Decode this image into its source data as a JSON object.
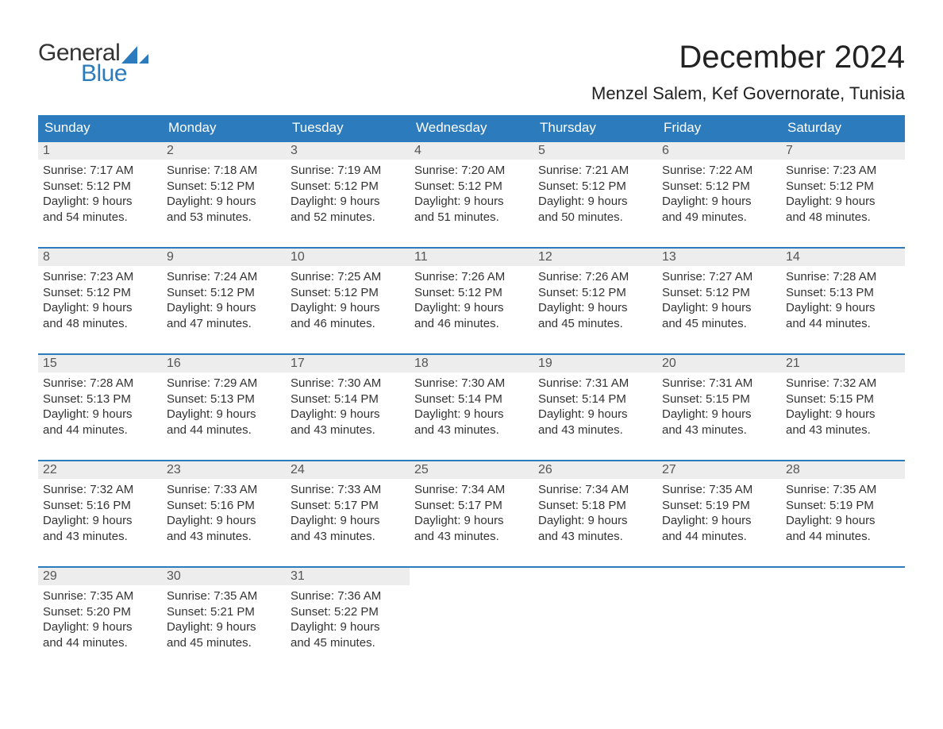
{
  "brand": {
    "text1": "General",
    "text2": "Blue",
    "sail_color": "#2b7bbd"
  },
  "title": "December 2024",
  "location": "Menzel Salem, Kef Governorate, Tunisia",
  "colors": {
    "header_bg": "#2b7bbd",
    "header_text": "#ffffff",
    "daynum_bg": "#ededed",
    "border": "#2b7bbd",
    "body_bg": "#ffffff",
    "text": "#333333"
  },
  "day_headers": [
    "Sunday",
    "Monday",
    "Tuesday",
    "Wednesday",
    "Thursday",
    "Friday",
    "Saturday"
  ],
  "weeks": [
    [
      {
        "n": "1",
        "sunrise": "Sunrise: 7:17 AM",
        "sunset": "Sunset: 5:12 PM",
        "dl1": "Daylight: 9 hours",
        "dl2": "and 54 minutes."
      },
      {
        "n": "2",
        "sunrise": "Sunrise: 7:18 AM",
        "sunset": "Sunset: 5:12 PM",
        "dl1": "Daylight: 9 hours",
        "dl2": "and 53 minutes."
      },
      {
        "n": "3",
        "sunrise": "Sunrise: 7:19 AM",
        "sunset": "Sunset: 5:12 PM",
        "dl1": "Daylight: 9 hours",
        "dl2": "and 52 minutes."
      },
      {
        "n": "4",
        "sunrise": "Sunrise: 7:20 AM",
        "sunset": "Sunset: 5:12 PM",
        "dl1": "Daylight: 9 hours",
        "dl2": "and 51 minutes."
      },
      {
        "n": "5",
        "sunrise": "Sunrise: 7:21 AM",
        "sunset": "Sunset: 5:12 PM",
        "dl1": "Daylight: 9 hours",
        "dl2": "and 50 minutes."
      },
      {
        "n": "6",
        "sunrise": "Sunrise: 7:22 AM",
        "sunset": "Sunset: 5:12 PM",
        "dl1": "Daylight: 9 hours",
        "dl2": "and 49 minutes."
      },
      {
        "n": "7",
        "sunrise": "Sunrise: 7:23 AM",
        "sunset": "Sunset: 5:12 PM",
        "dl1": "Daylight: 9 hours",
        "dl2": "and 48 minutes."
      }
    ],
    [
      {
        "n": "8",
        "sunrise": "Sunrise: 7:23 AM",
        "sunset": "Sunset: 5:12 PM",
        "dl1": "Daylight: 9 hours",
        "dl2": "and 48 minutes."
      },
      {
        "n": "9",
        "sunrise": "Sunrise: 7:24 AM",
        "sunset": "Sunset: 5:12 PM",
        "dl1": "Daylight: 9 hours",
        "dl2": "and 47 minutes."
      },
      {
        "n": "10",
        "sunrise": "Sunrise: 7:25 AM",
        "sunset": "Sunset: 5:12 PM",
        "dl1": "Daylight: 9 hours",
        "dl2": "and 46 minutes."
      },
      {
        "n": "11",
        "sunrise": "Sunrise: 7:26 AM",
        "sunset": "Sunset: 5:12 PM",
        "dl1": "Daylight: 9 hours",
        "dl2": "and 46 minutes."
      },
      {
        "n": "12",
        "sunrise": "Sunrise: 7:26 AM",
        "sunset": "Sunset: 5:12 PM",
        "dl1": "Daylight: 9 hours",
        "dl2": "and 45 minutes."
      },
      {
        "n": "13",
        "sunrise": "Sunrise: 7:27 AM",
        "sunset": "Sunset: 5:12 PM",
        "dl1": "Daylight: 9 hours",
        "dl2": "and 45 minutes."
      },
      {
        "n": "14",
        "sunrise": "Sunrise: 7:28 AM",
        "sunset": "Sunset: 5:13 PM",
        "dl1": "Daylight: 9 hours",
        "dl2": "and 44 minutes."
      }
    ],
    [
      {
        "n": "15",
        "sunrise": "Sunrise: 7:28 AM",
        "sunset": "Sunset: 5:13 PM",
        "dl1": "Daylight: 9 hours",
        "dl2": "and 44 minutes."
      },
      {
        "n": "16",
        "sunrise": "Sunrise: 7:29 AM",
        "sunset": "Sunset: 5:13 PM",
        "dl1": "Daylight: 9 hours",
        "dl2": "and 44 minutes."
      },
      {
        "n": "17",
        "sunrise": "Sunrise: 7:30 AM",
        "sunset": "Sunset: 5:14 PM",
        "dl1": "Daylight: 9 hours",
        "dl2": "and 43 minutes."
      },
      {
        "n": "18",
        "sunrise": "Sunrise: 7:30 AM",
        "sunset": "Sunset: 5:14 PM",
        "dl1": "Daylight: 9 hours",
        "dl2": "and 43 minutes."
      },
      {
        "n": "19",
        "sunrise": "Sunrise: 7:31 AM",
        "sunset": "Sunset: 5:14 PM",
        "dl1": "Daylight: 9 hours",
        "dl2": "and 43 minutes."
      },
      {
        "n": "20",
        "sunrise": "Sunrise: 7:31 AM",
        "sunset": "Sunset: 5:15 PM",
        "dl1": "Daylight: 9 hours",
        "dl2": "and 43 minutes."
      },
      {
        "n": "21",
        "sunrise": "Sunrise: 7:32 AM",
        "sunset": "Sunset: 5:15 PM",
        "dl1": "Daylight: 9 hours",
        "dl2": "and 43 minutes."
      }
    ],
    [
      {
        "n": "22",
        "sunrise": "Sunrise: 7:32 AM",
        "sunset": "Sunset: 5:16 PM",
        "dl1": "Daylight: 9 hours",
        "dl2": "and 43 minutes."
      },
      {
        "n": "23",
        "sunrise": "Sunrise: 7:33 AM",
        "sunset": "Sunset: 5:16 PM",
        "dl1": "Daylight: 9 hours",
        "dl2": "and 43 minutes."
      },
      {
        "n": "24",
        "sunrise": "Sunrise: 7:33 AM",
        "sunset": "Sunset: 5:17 PM",
        "dl1": "Daylight: 9 hours",
        "dl2": "and 43 minutes."
      },
      {
        "n": "25",
        "sunrise": "Sunrise: 7:34 AM",
        "sunset": "Sunset: 5:17 PM",
        "dl1": "Daylight: 9 hours",
        "dl2": "and 43 minutes."
      },
      {
        "n": "26",
        "sunrise": "Sunrise: 7:34 AM",
        "sunset": "Sunset: 5:18 PM",
        "dl1": "Daylight: 9 hours",
        "dl2": "and 43 minutes."
      },
      {
        "n": "27",
        "sunrise": "Sunrise: 7:35 AM",
        "sunset": "Sunset: 5:19 PM",
        "dl1": "Daylight: 9 hours",
        "dl2": "and 44 minutes."
      },
      {
        "n": "28",
        "sunrise": "Sunrise: 7:35 AM",
        "sunset": "Sunset: 5:19 PM",
        "dl1": "Daylight: 9 hours",
        "dl2": "and 44 minutes."
      }
    ],
    [
      {
        "n": "29",
        "sunrise": "Sunrise: 7:35 AM",
        "sunset": "Sunset: 5:20 PM",
        "dl1": "Daylight: 9 hours",
        "dl2": "and 44 minutes."
      },
      {
        "n": "30",
        "sunrise": "Sunrise: 7:35 AM",
        "sunset": "Sunset: 5:21 PM",
        "dl1": "Daylight: 9 hours",
        "dl2": "and 45 minutes."
      },
      {
        "n": "31",
        "sunrise": "Sunrise: 7:36 AM",
        "sunset": "Sunset: 5:22 PM",
        "dl1": "Daylight: 9 hours",
        "dl2": "and 45 minutes."
      },
      {
        "empty": true
      },
      {
        "empty": true
      },
      {
        "empty": true
      },
      {
        "empty": true
      }
    ]
  ]
}
